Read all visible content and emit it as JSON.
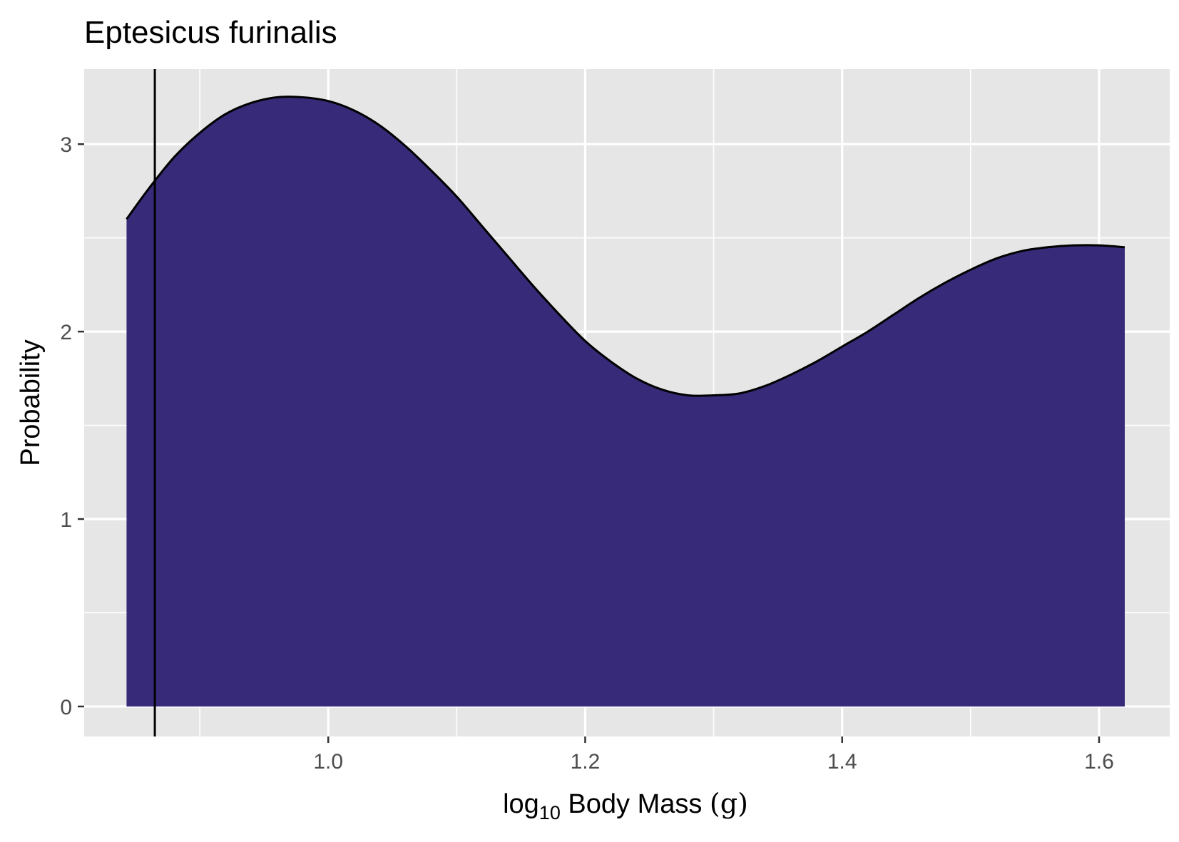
{
  "chart_data": {
    "type": "area",
    "title": "Eptesicus furinalis",
    "xlabel": {
      "prefix": "log",
      "subscript": "10",
      "rest": " Body Mass ",
      "unit": "(g)"
    },
    "ylabel": "Probability",
    "xlim": [
      0.81,
      1.655
    ],
    "ylim": [
      -0.16,
      3.4
    ],
    "x_ticks": [
      {
        "value": 1.0,
        "label": "1.0"
      },
      {
        "value": 1.2,
        "label": "1.2"
      },
      {
        "value": 1.4,
        "label": "1.4"
      },
      {
        "value": 1.6,
        "label": "1.6"
      }
    ],
    "x_minor_ticks": [
      0.9,
      1.1,
      1.3,
      1.5
    ],
    "y_ticks": [
      {
        "value": 0,
        "label": "0"
      },
      {
        "value": 1,
        "label": "1"
      },
      {
        "value": 2,
        "label": "2"
      },
      {
        "value": 3,
        "label": "3"
      }
    ],
    "y_minor_ticks": [
      0.5,
      1.5,
      2.5
    ],
    "grid": true,
    "fill_color": "#372a78",
    "panel_color": "#e6e6e6",
    "series": [
      {
        "x": [
          0.843,
          0.86,
          0.88,
          0.9,
          0.92,
          0.94,
          0.96,
          0.98,
          1.0,
          1.02,
          1.04,
          1.06,
          1.08,
          1.1,
          1.12,
          1.14,
          1.16,
          1.18,
          1.2,
          1.22,
          1.24,
          1.26,
          1.28,
          1.3,
          1.32,
          1.34,
          1.36,
          1.38,
          1.4,
          1.42,
          1.44,
          1.46,
          1.48,
          1.5,
          1.52,
          1.54,
          1.56,
          1.58,
          1.6,
          1.62
        ],
        "y": [
          2.6,
          2.76,
          2.93,
          3.06,
          3.16,
          3.22,
          3.25,
          3.25,
          3.23,
          3.18,
          3.1,
          2.99,
          2.86,
          2.72,
          2.56,
          2.4,
          2.24,
          2.09,
          1.95,
          1.84,
          1.75,
          1.69,
          1.66,
          1.66,
          1.67,
          1.71,
          1.77,
          1.84,
          1.92,
          2.0,
          2.09,
          2.18,
          2.26,
          2.33,
          2.39,
          2.43,
          2.45,
          2.46,
          2.46,
          2.45
        ]
      }
    ],
    "vline": {
      "x": 0.865
    }
  }
}
